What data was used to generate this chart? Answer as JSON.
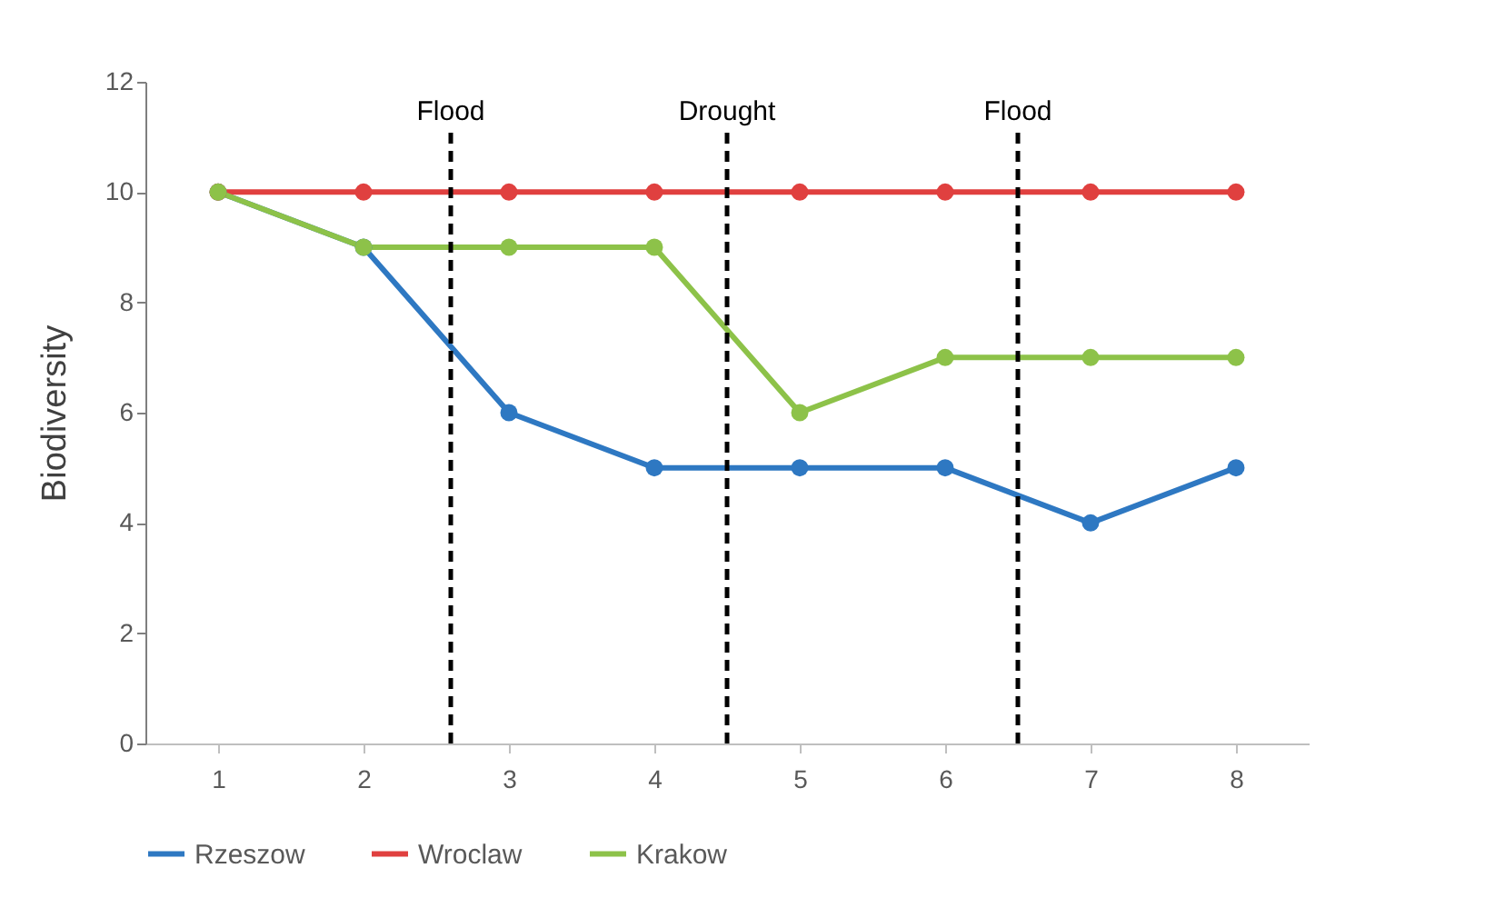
{
  "chart_data": {
    "type": "line",
    "ylabel": "Biodiversity",
    "x": [
      1,
      2,
      3,
      4,
      5,
      6,
      7,
      8
    ],
    "xlim": [
      0.5,
      8.5
    ],
    "xticks": [
      1,
      2,
      3,
      4,
      5,
      6,
      7,
      8
    ],
    "ylim": [
      0,
      12
    ],
    "yticks": [
      0,
      2,
      4,
      6,
      8,
      10,
      12
    ],
    "grid": false,
    "legend": "bottom",
    "marker": "circle",
    "line_style": "solid",
    "series": [
      {
        "name": "Rzeszow",
        "color": "#2e78c2",
        "values": [
          10,
          9,
          6,
          5,
          5,
          5,
          4,
          5
        ]
      },
      {
        "name": "Wroclaw",
        "color": "#e0403f",
        "values": [
          10,
          10,
          10,
          10,
          10,
          10,
          10,
          10
        ]
      },
      {
        "name": "Krakow",
        "color": "#8dc249",
        "values": [
          10,
          9,
          9,
          9,
          6,
          7,
          7,
          7
        ]
      }
    ],
    "ref_lines": [
      {
        "axis": "x",
        "value": 2.6,
        "label": "Flood",
        "line_style": "dashed",
        "color": "#000000"
      },
      {
        "axis": "x",
        "value": 4.5,
        "label": "Drought",
        "line_style": "dashed",
        "color": "#000000"
      },
      {
        "axis": "x",
        "value": 6.5,
        "label": "Flood",
        "line_style": "dashed",
        "color": "#000000"
      }
    ]
  }
}
